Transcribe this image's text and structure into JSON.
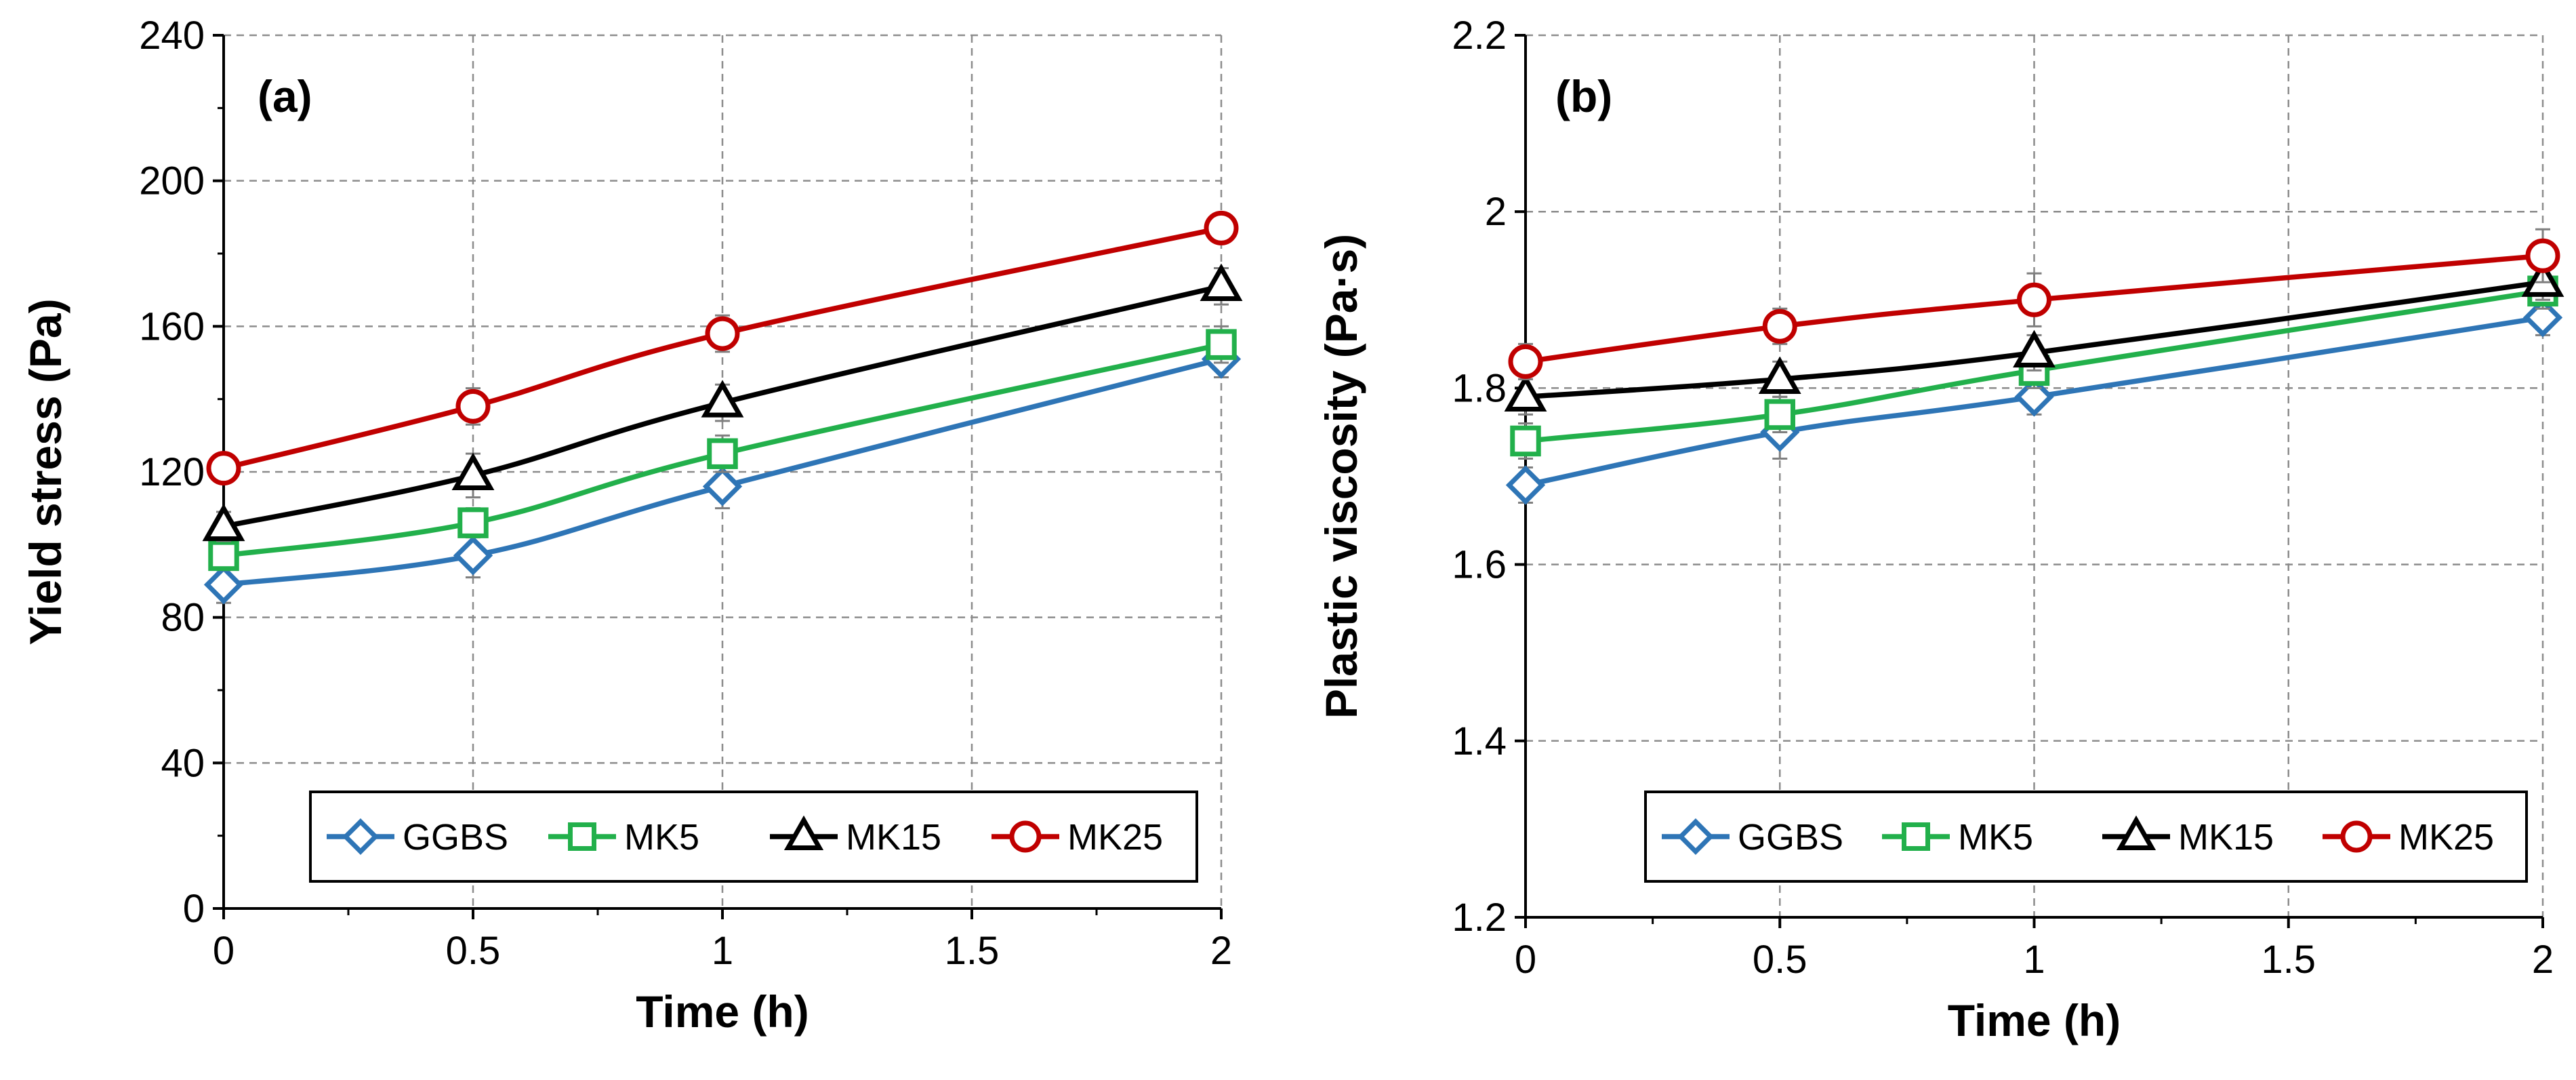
{
  "chart_data": [
    {
      "type": "line",
      "panel_label": "(a)",
      "xlabel": "Time (h)",
      "ylabel": "Yield stress (Pa)",
      "xlim": [
        0,
        2
      ],
      "ylim": [
        0,
        240
      ],
      "x_ticks": [
        0,
        0.5,
        1,
        1.5,
        2
      ],
      "x_tick_labels": [
        "0",
        "0.5",
        "1",
        "1.5",
        "2"
      ],
      "y_ticks": [
        0,
        40,
        80,
        120,
        160,
        200,
        240
      ],
      "y_tick_labels": [
        "0",
        "40",
        "80",
        "120",
        "160",
        "200",
        "240"
      ],
      "grid": true,
      "legend_position": "bottom",
      "x": [
        0,
        0.5,
        1,
        2
      ],
      "series": [
        {
          "name": "GGBS",
          "marker": "diamond",
          "color": "#2E75B6",
          "values": [
            89,
            97,
            116,
            151
          ],
          "errors": [
            5,
            6,
            6,
            5
          ]
        },
        {
          "name": "MK5",
          "marker": "square",
          "color": "#22B04B",
          "values": [
            97,
            106,
            125,
            155
          ],
          "errors": [
            4,
            4,
            5,
            5
          ]
        },
        {
          "name": "MK15",
          "marker": "triangle",
          "color": "#000000",
          "values": [
            105,
            119,
            139,
            171
          ],
          "errors": [
            4,
            6,
            5,
            5
          ]
        },
        {
          "name": "MK25",
          "marker": "circle",
          "color": "#C00000",
          "values": [
            121,
            138,
            158,
            187
          ],
          "errors": [
            4,
            5,
            5,
            4
          ]
        }
      ]
    },
    {
      "type": "line",
      "panel_label": "(b)",
      "xlabel": "Time (h)",
      "ylabel": "Plastic viscosity (Pa·s)",
      "xlim": [
        0,
        2
      ],
      "ylim": [
        1.2,
        2.2
      ],
      "x_ticks": [
        0,
        0.5,
        1,
        1.5,
        2
      ],
      "x_tick_labels": [
        "0",
        "0.5",
        "1",
        "1.5",
        "2"
      ],
      "y_ticks": [
        1.2,
        1.4,
        1.6,
        1.8,
        2,
        2.2
      ],
      "y_tick_labels": [
        "1.2",
        "1.4",
        "1.6",
        "1.8",
        "2",
        "2.2"
      ],
      "grid": true,
      "legend_position": "bottom",
      "x": [
        0,
        0.5,
        1,
        2
      ],
      "series": [
        {
          "name": "GGBS",
          "marker": "diamond",
          "color": "#2E75B6",
          "values": [
            1.69,
            1.75,
            1.79,
            1.88
          ],
          "errors": [
            0.02,
            0.03,
            0.02,
            0.02
          ]
        },
        {
          "name": "MK5",
          "marker": "square",
          "color": "#22B04B",
          "values": [
            1.74,
            1.77,
            1.82,
            1.91
          ],
          "errors": [
            0.02,
            0.02,
            0.02,
            0.02
          ]
        },
        {
          "name": "MK15",
          "marker": "triangle",
          "color": "#000000",
          "values": [
            1.79,
            1.81,
            1.84,
            1.92
          ],
          "errors": [
            0.02,
            0.02,
            0.02,
            0.02
          ]
        },
        {
          "name": "MK25",
          "marker": "circle",
          "color": "#C00000",
          "values": [
            1.83,
            1.87,
            1.9,
            1.95
          ],
          "errors": [
            0.02,
            0.02,
            0.03,
            0.03
          ]
        }
      ]
    }
  ]
}
